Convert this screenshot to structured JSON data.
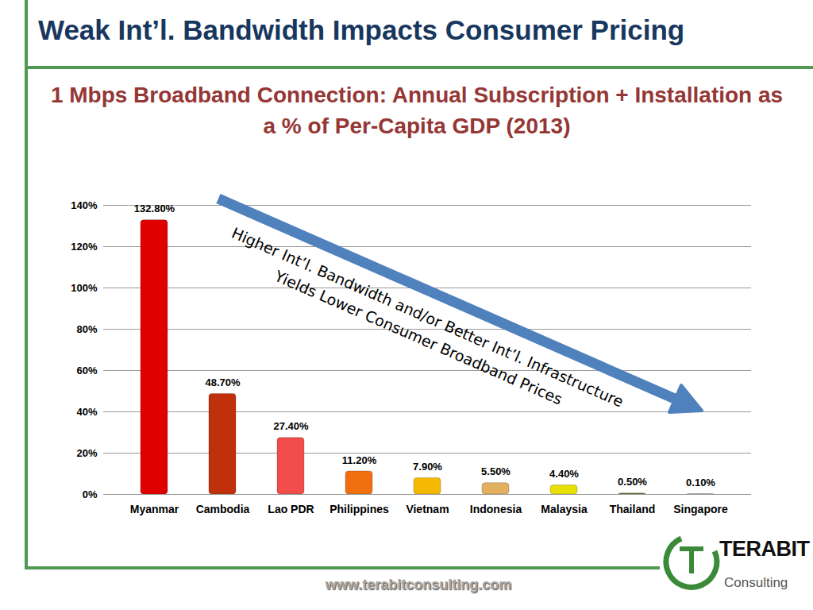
{
  "slide": {
    "heading": "Weak Int’l. Bandwidth Impacts Consumer Pricing",
    "url": "www.terabitconsulting.com",
    "logo": [
      "TERABIT",
      "Consulting"
    ]
  },
  "chart_data": {
    "type": "bar",
    "title": "1 Mbps Broadband Connection: Annual Subscription + Installation as a % of Per-Capita GDP (2013)",
    "categories": [
      "Myanmar",
      "Cambodia",
      "Lao PDR",
      "Philippines",
      "Vietnam",
      "Indonesia",
      "Malaysia",
      "Thailand",
      "Singapore"
    ],
    "values": [
      132.8,
      48.7,
      27.4,
      11.2,
      7.9,
      5.5,
      4.4,
      0.5,
      0.1
    ],
    "value_labels": [
      "132.80%",
      "48.70%",
      "27.40%",
      "11.20%",
      "7.90%",
      "5.50%",
      "4.40%",
      "0.50%",
      "0.10%"
    ],
    "colors": [
      "#e00000",
      "#c0300a",
      "#f24d4d",
      "#f07010",
      "#f5b800",
      "#e3b060",
      "#e8e000",
      "#6b7a2a",
      "#3d4a1a"
    ],
    "data_labels": true,
    "ylim": [
      0,
      140
    ],
    "yticks": [
      {
        "value": 0,
        "label": "0%"
      },
      {
        "value": 20,
        "label": "20%"
      },
      {
        "value": 40,
        "label": "40%"
      },
      {
        "value": 60,
        "label": "60%"
      },
      {
        "value": 80,
        "label": "80%"
      },
      {
        "value": 100,
        "label": "100%"
      },
      {
        "value": 120,
        "label": "120%"
      },
      {
        "value": 140,
        "label": "140%"
      }
    ],
    "grid": true,
    "annotation": [
      "Higher Int’l. Bandwidth and/or Better Int’l. Infrastructure",
      "Yields Lower Consumer Broadband Prices"
    ]
  }
}
